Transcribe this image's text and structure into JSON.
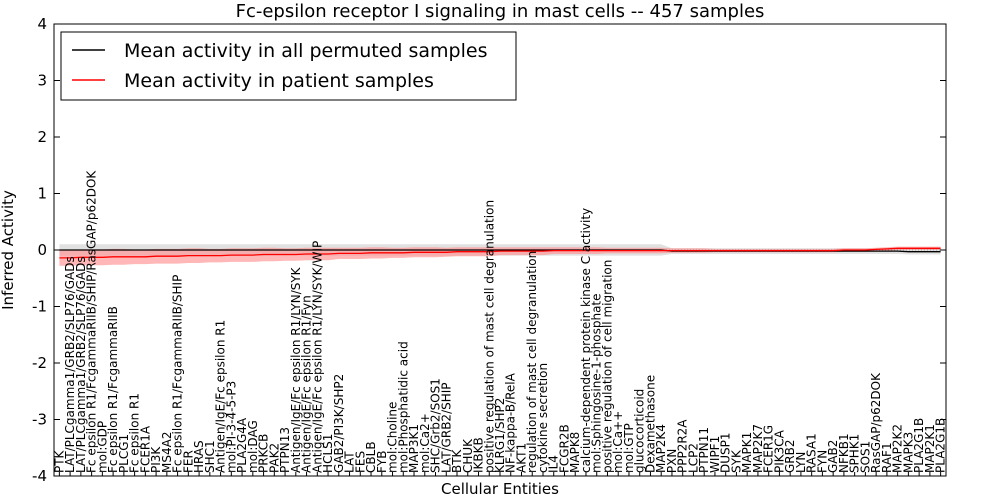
{
  "chart_data": {
    "type": "line",
    "title": "Fc-epsilon receptor I signaling in mast cells -- 457 samples",
    "xlabel": "Cellular Entities",
    "ylabel": "Inferred Activity",
    "ylim": [
      -4,
      4
    ],
    "yticks": [
      -4,
      -3,
      -2,
      -1,
      0,
      1,
      2,
      3,
      4
    ],
    "grid": false,
    "legend_position": "top-left",
    "categories": [
      "PTK",
      "LAT/PLCgamma1/GRB2/SLP76/GADs",
      "LAT/PLCgamma1/GRB2/SLP76/GADs",
      "Fc epsilon R1/FcgammaRIIB/SHIP/RasGAP/p62DOK",
      "mol:GDP",
      "Fc epsilon R1/FcgammaRIIB",
      "PLCG1",
      "Fc epsilon R1",
      "FCER1A",
      "PI3K",
      "MS4A2",
      "Fc epsilon R1/FcgammaRIIB/SHIP",
      "FER",
      "HRAS",
      "SHC1",
      "Antigen/IgE/Fc epsilon R1",
      "mol:PI-3-4-5-P3",
      "PLA2G4A",
      "mol:DAG",
      "PRKCB",
      "PAK2",
      "PTPN13",
      "Antigen/IgE/Fc epsilon R1/LYN/SYK",
      "Antigen/IgE/Fc epsilon R1/Fyn",
      "Antigen/IgE/Fc epsilon R1/LYN/SYK/WIP",
      "HCLS1",
      "GAB2/PI3K/SHP2",
      "LAT",
      "FES",
      "CBLB",
      "FYB",
      "mol:Choline",
      "mol:Phosphatidic acid",
      "MAP3K1",
      "mol:Ca2+",
      "SHC/Grb2/SOS1",
      "LAT/GRB2/SHIP",
      "BTK",
      "CHUK",
      "IKBKB",
      "positive regulation of mast cell degranulation",
      "KLRG1/SHP2",
      "NF-kappa-B/RelA",
      "AKT1",
      "regulation of mast cell degranulation",
      "cytokine secretion",
      "IL4",
      "FCGR2B",
      "MAPK8",
      "calcium-dependent protein kinase C activity",
      "mol:Sphingosine-1-phosphate",
      "positive regulation of cell migration",
      "mol:Ca++",
      "mol:GTP",
      "glucocorticoid",
      "Dexamethasone",
      "MAP2K4",
      "PXN",
      "PPP2R2A",
      "LCP2",
      "PTPN11",
      "WIPF1",
      "DUSP1",
      "SYK",
      "MAPK1",
      "MAP2K7",
      "FCER1G",
      "PIK3CA",
      "GRB2",
      "LYN",
      "RASA1",
      "FYN",
      "GAB2",
      "NFKB1",
      "SPHK1",
      "SOS1",
      "RasGAP/p62DOK",
      "RAF1",
      "MAP2K2",
      "MAPK3",
      "PLA2G1B",
      "MAP2K1",
      "PLA2G1B"
    ],
    "visible_labels": [
      "PTK",
      "LAT/PLCgamma1/GRB2/SLP76/GADs",
      "LAT/PLCgamma1/GRB2/SLP76/GADs",
      "Fc epsilon R1/FcgammaRIIB/SHIP/RasGAP/p62DOK",
      "mol:GDP",
      "Fc epsilon R1/FcgammaRIIB",
      "PLCG1",
      "Fc epsilon R1",
      "FCER1A",
      "PI3K",
      "MS4A2",
      "Fc epsilon R1/FcgammaRIIB/SHIP",
      "FER",
      "HRAS",
      "SHC1",
      "Antigen/IgE/Fc epsilon R1",
      "mol:PI-3-4-5-P3",
      "PLA2G4A",
      "mol:DAG",
      "PRKCB",
      "PAK2",
      "PTPN13",
      "Antigen/IgE/Fc epsilon R1/LYN/SYK",
      "Antigen/IgE/Fc epsilon R1/Fyn",
      "Antigen/IgE/Fc epsilon R1/LYN/SYK/WIP",
      "HCLS1",
      "GAB2/PI3K/SHP2",
      "LAT",
      "FES",
      "CBLB",
      "FYB",
      "mol:Choline",
      "mol:Phosphatidic acid",
      "MAP3K1",
      "mol:Ca2+",
      "SHC/Grb2/SOS1",
      "LAT/GRB2/SHIP",
      "BTK",
      "CHUK",
      "IKBKB",
      "positive regulation of mast cell degranulation",
      "KLRG1/SHP2",
      "NF-kappa-B/RelA",
      "AKT1",
      "regulation of mast cell degranulation",
      "cytokine secretion",
      "IL4",
      "FCGR2B",
      "MAPK8",
      "calcium-dependent protein kinase C activity",
      "mol:Sphingosine-1-phosphate",
      "positive regulation of cell migration",
      "mol:Ca++",
      "mol:GTP",
      "glucocorticoid",
      "Dexamethasone",
      "MAP2K4",
      "PXN",
      "PPP2R2A",
      "LCP2",
      "PTPN11",
      "WIPF1",
      "DUSP1",
      "SYK",
      "MAPK1",
      "MAP2K7",
      "FCER1G",
      "PIK3CA",
      "GRB2",
      "LYN",
      "RASA1",
      "FYN",
      "GAB2",
      "NFKB1",
      "SPHK1",
      "SOS1",
      "RasGAP/p62DOK",
      "RAF1",
      "MAP2K2",
      "MAPK3",
      "PLA2G1B",
      "MAP2K1",
      "PLA2G1B"
    ],
    "series": [
      {
        "name": "Mean activity in all permuted samples",
        "color": "#000000",
        "band_color": "#c8c8c8",
        "values": [
          0.0,
          0.0,
          0.0,
          0.0,
          0.0,
          0.0,
          0.0,
          0.0,
          0.0,
          0.0,
          0.0,
          0.0,
          0.0,
          0.0,
          0.0,
          0.0,
          0.0,
          0.0,
          0.0,
          0.0,
          0.0,
          0.0,
          0.0,
          0.0,
          0.0,
          0.0,
          0.0,
          0.0,
          0.0,
          0.0,
          0.0,
          0.0,
          0.0,
          0.0,
          0.0,
          0.0,
          0.0,
          0.0,
          0.0,
          0.0,
          0.0,
          0.0,
          0.0,
          0.0,
          0.0,
          0.0,
          0.0,
          0.0,
          0.0,
          0.0,
          0.0,
          0.0,
          0.0,
          0.0,
          0.0,
          0.0,
          0.0,
          -0.02,
          -0.02,
          -0.02,
          -0.02,
          -0.02,
          -0.02,
          -0.02,
          -0.02,
          -0.02,
          -0.02,
          -0.02,
          -0.02,
          -0.02,
          -0.02,
          -0.02,
          -0.02,
          -0.02,
          -0.02,
          -0.02,
          -0.02,
          -0.02,
          -0.02,
          -0.03,
          -0.03,
          -0.03,
          -0.03
        ],
        "band": [
          0.1,
          0.1,
          0.1,
          0.1,
          0.1,
          0.1,
          0.1,
          0.1,
          0.1,
          0.1,
          0.1,
          0.1,
          0.1,
          0.1,
          0.1,
          0.1,
          0.1,
          0.1,
          0.1,
          0.1,
          0.1,
          0.1,
          0.1,
          0.1,
          0.1,
          0.1,
          0.1,
          0.1,
          0.1,
          0.1,
          0.1,
          0.1,
          0.1,
          0.1,
          0.1,
          0.1,
          0.1,
          0.1,
          0.1,
          0.1,
          0.1,
          0.1,
          0.1,
          0.1,
          0.1,
          0.1,
          0.1,
          0.1,
          0.1,
          0.1,
          0.1,
          0.1,
          0.1,
          0.1,
          0.1,
          0.1,
          0.1,
          0.05,
          0.05,
          0.05,
          0.05,
          0.05,
          0.05,
          0.05,
          0.05,
          0.05,
          0.05,
          0.05,
          0.05,
          0.05,
          0.05,
          0.05,
          0.05,
          0.05,
          0.05,
          0.05,
          0.05,
          0.05,
          0.05,
          0.05,
          0.05,
          0.05,
          0.05
        ]
      },
      {
        "name": "Mean activity in patient samples",
        "color": "#ff0000",
        "band_color": "#ff9090",
        "values": [
          -0.14,
          -0.14,
          -0.13,
          -0.13,
          -0.13,
          -0.12,
          -0.12,
          -0.12,
          -0.12,
          -0.11,
          -0.11,
          -0.11,
          -0.1,
          -0.1,
          -0.1,
          -0.1,
          -0.09,
          -0.09,
          -0.09,
          -0.08,
          -0.08,
          -0.08,
          -0.08,
          -0.07,
          -0.07,
          -0.07,
          -0.06,
          -0.06,
          -0.06,
          -0.05,
          -0.05,
          -0.05,
          -0.05,
          -0.04,
          -0.04,
          -0.04,
          -0.04,
          -0.03,
          -0.03,
          -0.03,
          -0.03,
          -0.02,
          -0.02,
          -0.02,
          -0.02,
          -0.02,
          -0.01,
          -0.01,
          -0.01,
          -0.01,
          -0.01,
          -0.01,
          -0.01,
          -0.01,
          -0.01,
          -0.01,
          -0.01,
          -0.01,
          -0.01,
          -0.01,
          -0.01,
          -0.01,
          -0.01,
          -0.01,
          -0.01,
          -0.01,
          -0.01,
          -0.01,
          -0.01,
          -0.01,
          -0.01,
          -0.01,
          -0.01,
          0.0,
          0.0,
          0.0,
          0.01,
          0.02,
          0.03,
          0.03,
          0.03,
          0.03,
          0.03
        ],
        "band": [
          0.14,
          0.14,
          0.14,
          0.14,
          0.14,
          0.14,
          0.14,
          0.13,
          0.13,
          0.13,
          0.13,
          0.13,
          0.13,
          0.13,
          0.12,
          0.12,
          0.12,
          0.12,
          0.12,
          0.12,
          0.12,
          0.11,
          0.11,
          0.11,
          0.11,
          0.11,
          0.1,
          0.1,
          0.1,
          0.1,
          0.1,
          0.09,
          0.09,
          0.09,
          0.09,
          0.09,
          0.08,
          0.08,
          0.08,
          0.08,
          0.08,
          0.07,
          0.07,
          0.07,
          0.07,
          0.07,
          0.06,
          0.06,
          0.06,
          0.06,
          0.06,
          0.05,
          0.05,
          0.05,
          0.05,
          0.05,
          0.05,
          0.04,
          0.04,
          0.04,
          0.04,
          0.03,
          0.03,
          0.03,
          0.03,
          0.03,
          0.03,
          0.03,
          0.03,
          0.03,
          0.03,
          0.03,
          0.03,
          0.03,
          0.03,
          0.03,
          0.03,
          0.03,
          0.03,
          0.03,
          0.03,
          0.03,
          0.03
        ]
      }
    ]
  }
}
